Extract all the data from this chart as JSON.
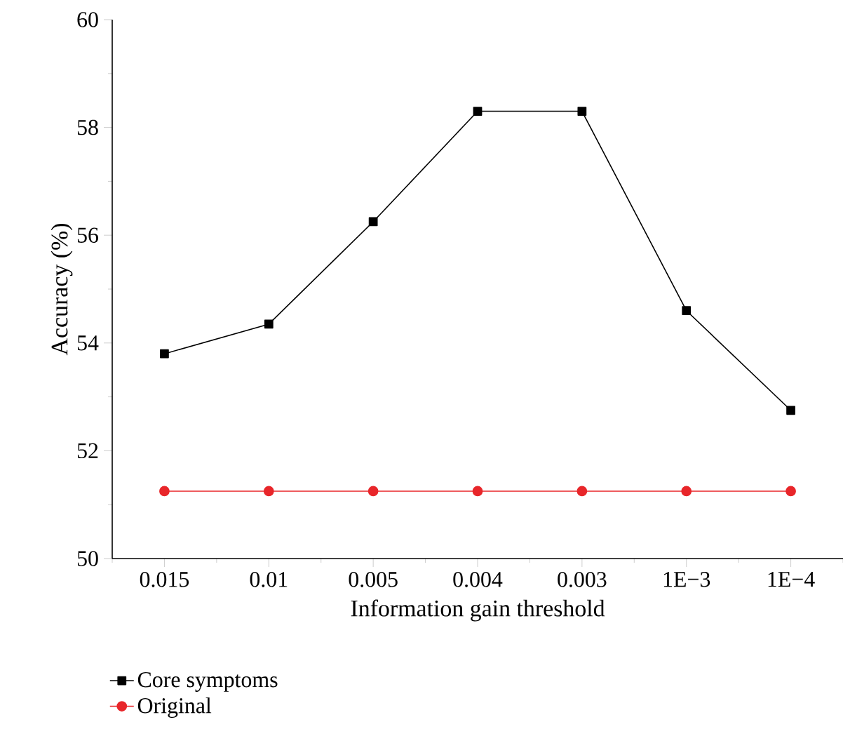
{
  "chart_data": {
    "type": "line",
    "xlabel": "Information gain threshold",
    "ylabel": "Accuracy (%)",
    "categories": [
      "0.015",
      "0.01",
      "0.005",
      "0.004",
      "0.003",
      "1E−3",
      "1E−4"
    ],
    "series": [
      {
        "name": "Core symptoms",
        "color": "#000000",
        "marker": "square",
        "values": [
          53.8,
          54.35,
          56.25,
          58.3,
          58.3,
          54.6,
          52.75
        ]
      },
      {
        "name": "Original",
        "color": "#e8262a",
        "marker": "circle",
        "values": [
          51.25,
          51.25,
          51.25,
          51.25,
          51.25,
          51.25,
          51.25
        ]
      }
    ],
    "ylim": [
      50,
      60
    ],
    "yticks": [
      50,
      52,
      54,
      56,
      58,
      60
    ],
    "legend": "bottom left",
    "grid": false
  }
}
